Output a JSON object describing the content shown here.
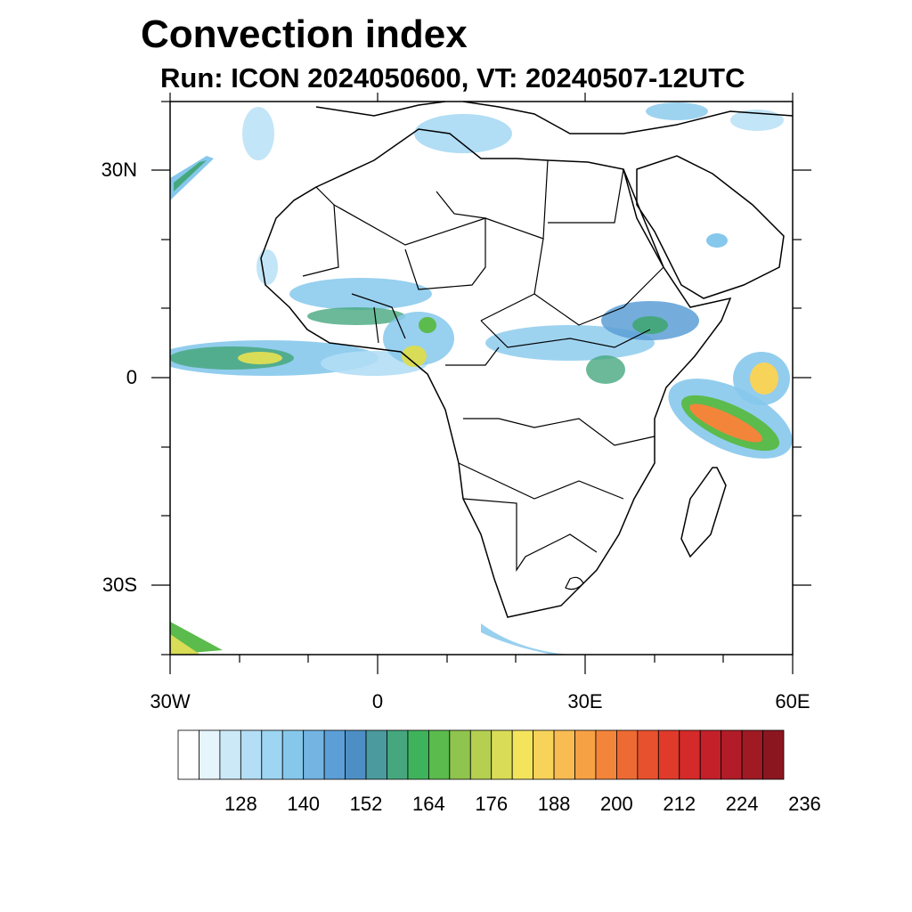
{
  "title": "Convection index",
  "subtitle": "Run: ICON 2024050600,  VT: 20240507-12UTC",
  "map": {
    "lon_range": [
      -30,
      60
    ],
    "lat_range": [
      -40,
      40
    ],
    "x_ticks": [
      "30W",
      "0",
      "30E",
      "60E"
    ],
    "y_ticks": [
      "30N",
      "0",
      "30S"
    ]
  },
  "colorbar": {
    "labels": [
      "128",
      "140",
      "152",
      "164",
      "176",
      "188",
      "200",
      "212",
      "224",
      "236"
    ],
    "colors": [
      "#ffffff",
      "#e6f4fc",
      "#cce9f8",
      "#b3def5",
      "#9dd5f2",
      "#86c8ec",
      "#73b4e3",
      "#5c9fd6",
      "#4d8fc4",
      "#4a9a9e",
      "#46a77e",
      "#3fb35c",
      "#5bbb4c",
      "#8fc44e",
      "#b5cf50",
      "#d9dc56",
      "#f4e45c",
      "#f8d35a",
      "#f9bc52",
      "#f7a145",
      "#f3853b",
      "#ee6a33",
      "#e8512d",
      "#e03a2b",
      "#d42a2a",
      "#c4202a",
      "#b21c28",
      "#a01a24",
      "#8c1620"
    ]
  }
}
